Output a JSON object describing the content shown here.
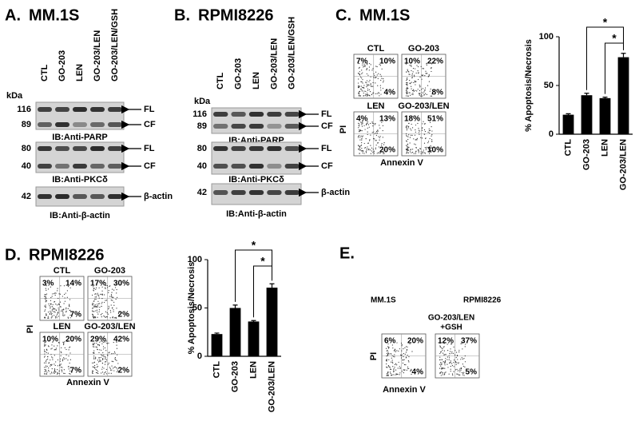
{
  "panels": {
    "a": {
      "label": "A.",
      "title": "MM.1S",
      "kda": "kDa",
      "lanes": [
        "CTL",
        "GO-203",
        "LEN",
        "GO-203/LEN",
        "GO-203/LEN/GSH"
      ],
      "blots": [
        {
          "markers": [
            "116",
            "89"
          ],
          "arrows": [
            "FL",
            "CF"
          ],
          "caption": "IB:Anti-PARP"
        },
        {
          "markers": [
            "80",
            "40"
          ],
          "arrows": [
            "FL",
            "CF"
          ],
          "caption": "IB:Anti-PKCδ"
        },
        {
          "markers": [
            "42"
          ],
          "arrows": [
            "β-actin"
          ],
          "caption": "IB:Anti-β-actin"
        }
      ]
    },
    "b": {
      "label": "B.",
      "title": "RPMI8226",
      "kda": "kDa",
      "lanes": [
        "CTL",
        "GO-203",
        "LEN",
        "GO-203/LEN",
        "GO-203/LEN/GSH"
      ],
      "blots": [
        {
          "markers": [
            "116",
            "89"
          ],
          "arrows": [
            "FL",
            "CF"
          ],
          "caption": "IB:Anti-PARP"
        },
        {
          "markers": [
            "80",
            "40"
          ],
          "arrows": [
            "FL",
            "CF"
          ],
          "caption": "IB:Anti-PKCδ"
        },
        {
          "markers": [
            "42"
          ],
          "arrows": [
            "β-actin"
          ],
          "caption": "IB:Anti-β-actin"
        }
      ]
    },
    "c": {
      "label": "C.",
      "title": "MM.1S",
      "y_label": "PI",
      "x_label": "Annexin V",
      "plots": [
        {
          "name": "CTL",
          "quadrants": [
            "7%",
            "10%",
            "4%"
          ]
        },
        {
          "name": "GO-203",
          "quadrants": [
            "10%",
            "22%",
            "8%"
          ]
        },
        {
          "name": "LEN",
          "quadrants": [
            "4%",
            "13%",
            "20%"
          ]
        },
        {
          "name": "GO-203/LEN",
          "quadrants": [
            "18%",
            "51%",
            "10%"
          ]
        }
      ]
    },
    "d": {
      "label": "D.",
      "title": "RPMI8226",
      "y_label": "PI",
      "x_label": "Annexin V",
      "plots": [
        {
          "name": "CTL",
          "quadrants": [
            "3%",
            "14%",
            "7%"
          ]
        },
        {
          "name": "GO-203",
          "quadrants": [
            "17%",
            "30%",
            "2%"
          ]
        },
        {
          "name": "LEN",
          "quadrants": [
            "10%",
            "20%",
            "7%"
          ]
        },
        {
          "name": "GO-203/LEN",
          "quadrants": [
            "29%",
            "42%",
            "2%"
          ]
        }
      ]
    },
    "e": {
      "label": "E.",
      "cells": [
        "MM.1S",
        "RPMI8226"
      ],
      "treatment": [
        "GO-203/LEN",
        "+GSH"
      ],
      "y_label": "PI",
      "x_label": "Annexin V",
      "plots": [
        {
          "quadrants": [
            "6%",
            "20%",
            "4%"
          ]
        },
        {
          "quadrants": [
            "12%",
            "37%",
            "5%"
          ]
        }
      ]
    }
  },
  "chart_data": [
    {
      "type": "bar",
      "categories": [
        "CTL",
        "GO-203",
        "LEN",
        "GO-203/LEN"
      ],
      "values": [
        20,
        40,
        37,
        79
      ],
      "errors": [
        1,
        2,
        1,
        4
      ],
      "color": "#000000",
      "ylim": [
        0,
        100
      ],
      "yticks": [
        0,
        50,
        100
      ],
      "y_label": "% Apoptosis/Necrosis",
      "annotations": [
        "*",
        "*"
      ]
    },
    {
      "type": "bar",
      "categories": [
        "CTL",
        "GO-203",
        "LEN",
        "GO-203/LEN"
      ],
      "values": [
        23,
        50,
        36,
        71
      ],
      "errors": [
        1,
        3,
        1,
        4
      ],
      "color": "#000000",
      "ylim": [
        0,
        100
      ],
      "yticks": [
        0,
        50,
        100
      ],
      "y_label": "% Apoptosis/Necrosis",
      "annotations": [
        "*",
        "*"
      ]
    }
  ]
}
